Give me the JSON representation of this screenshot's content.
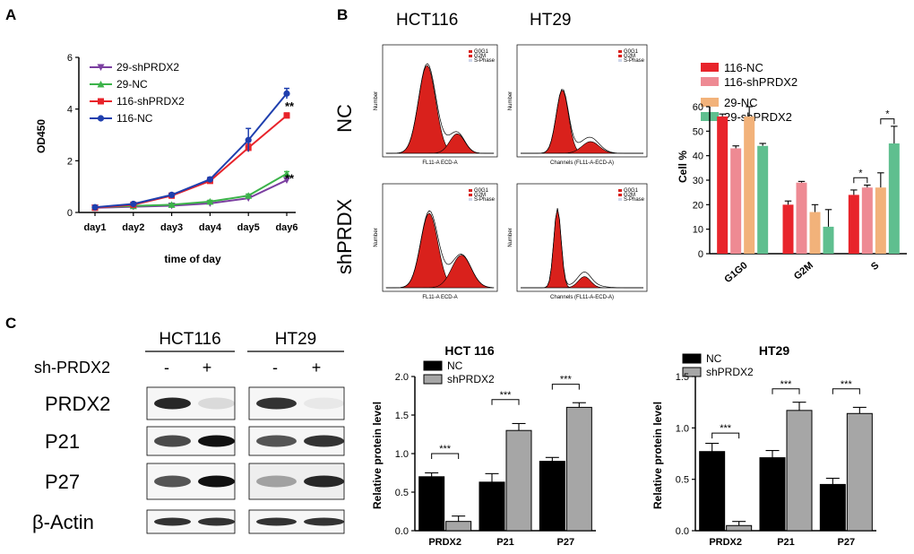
{
  "panels": {
    "a": "A",
    "b": "B",
    "c": "C"
  },
  "colors": {
    "c116nc": "#1f3fae",
    "c116sh": "#e8232a",
    "c29nc": "#3cb34a",
    "c29sh": "#7b3fa0",
    "b116nc": "#e8242b",
    "b116sh": "#ee8a93",
    "b29nc": "#f2b27a",
    "b29sh": "#5fbf8f",
    "nc": "#000000",
    "sh": "#a6a6a6",
    "peak": "#d9211c"
  },
  "chart_data": [
    {
      "id": "growth",
      "type": "line",
      "xlabel": "time of day",
      "ylabel": "OD450",
      "categories": [
        "day1",
        "day2",
        "day3",
        "day4",
        "day5",
        "day6"
      ],
      "ylim": [
        0,
        6
      ],
      "yticks": [
        "0",
        "2",
        "4",
        "6"
      ],
      "series": [
        {
          "name": "29-shPRDX2",
          "values": [
            0.18,
            0.22,
            0.26,
            0.35,
            0.55,
            1.25
          ],
          "errors": [
            0.03,
            0.03,
            0.04,
            0.05,
            0.06,
            0.08
          ]
        },
        {
          "name": "29-NC",
          "values": [
            0.2,
            0.25,
            0.3,
            0.42,
            0.65,
            1.5
          ],
          "errors": [
            0.03,
            0.03,
            0.04,
            0.05,
            0.06,
            0.08
          ]
        },
        {
          "name": "116-shPRDX2",
          "values": [
            0.18,
            0.3,
            0.65,
            1.22,
            2.5,
            3.75
          ],
          "errors": [
            0.04,
            0.05,
            0.06,
            0.08,
            0.15,
            0.1
          ]
        },
        {
          "name": "116-NC",
          "values": [
            0.2,
            0.33,
            0.68,
            1.28,
            2.8,
            4.6
          ],
          "errors": [
            0.04,
            0.05,
            0.06,
            0.08,
            0.45,
            0.2
          ]
        }
      ],
      "annotations": [
        "**",
        "**"
      ]
    },
    {
      "id": "cellcycle",
      "type": "bar",
      "ylabel": "Cell %",
      "ylim": [
        0,
        60
      ],
      "yticks": [
        "0",
        "10",
        "20",
        "30",
        "40",
        "50",
        "60"
      ],
      "categories": [
        "G1G0",
        "G2M",
        "S"
      ],
      "series": [
        {
          "name": "116-NC",
          "values": [
            56,
            20,
            24
          ],
          "errors": [
            1,
            1.5,
            2
          ]
        },
        {
          "name": "116-shPRDX2",
          "values": [
            43,
            29,
            27
          ],
          "errors": [
            1,
            0.5,
            1
          ]
        },
        {
          "name": "29-NC",
          "values": [
            56,
            17,
            27
          ],
          "errors": [
            4,
            3,
            6
          ]
        },
        {
          "name": "29-shPRDX2",
          "values": [
            44,
            11,
            45
          ],
          "errors": [
            1,
            7,
            7
          ]
        }
      ],
      "annotations": [
        "*",
        "*"
      ]
    },
    {
      "id": "hct116_protein",
      "type": "bar",
      "title": "HCT 116",
      "ylabel": "Relative protein level",
      "ylim": [
        0,
        2.0
      ],
      "yticks": [
        "0.0",
        "0.5",
        "1.0",
        "1.5",
        "2.0"
      ],
      "categories": [
        "PRDX2",
        "P21",
        "P27"
      ],
      "series": [
        {
          "name": "NC",
          "values": [
            0.7,
            0.63,
            0.9
          ],
          "errors": [
            0.05,
            0.11,
            0.05
          ]
        },
        {
          "name": "shPRDX2",
          "values": [
            0.12,
            1.3,
            1.6
          ],
          "errors": [
            0.07,
            0.09,
            0.06
          ]
        }
      ],
      "annotations": [
        "***",
        "***",
        "***"
      ]
    },
    {
      "id": "ht29_protein",
      "type": "bar",
      "title": "HT29",
      "ylabel": "Relative protein level",
      "ylim": [
        0,
        1.5
      ],
      "yticks": [
        "0.0",
        "0.5",
        "1.0",
        "1.5"
      ],
      "categories": [
        "PRDX2",
        "P21",
        "P27"
      ],
      "series": [
        {
          "name": "NC",
          "values": [
            0.77,
            0.71,
            0.45
          ],
          "errors": [
            0.08,
            0.07,
            0.06
          ]
        },
        {
          "name": "shPRDX2",
          "values": [
            0.05,
            1.17,
            1.14
          ],
          "errors": [
            0.04,
            0.08,
            0.06
          ]
        }
      ],
      "annotations": [
        "***",
        "***",
        "***"
      ]
    }
  ],
  "flow": {
    "col_labels": [
      "HCT116",
      "HT29"
    ],
    "row_labels": [
      "NC",
      "shPRDX"
    ],
    "legend": [
      "G0G1",
      "G2M",
      "S-Phase"
    ],
    "xlabels": [
      "FL11-A ECD-A",
      "Channels (FL11-A-ECD-A)",
      "FL11-A ECD-A",
      "Channels (FL11-A-ECD-A)"
    ],
    "ylabel": "Number"
  },
  "western": {
    "col_labels": [
      "HCT116",
      "HT29"
    ],
    "treatment_label": "sh-PRDX2",
    "signs": [
      "-",
      "+",
      "-",
      "+"
    ],
    "rows": [
      "PRDX2",
      "P21",
      "P27",
      "β-Actin"
    ]
  }
}
